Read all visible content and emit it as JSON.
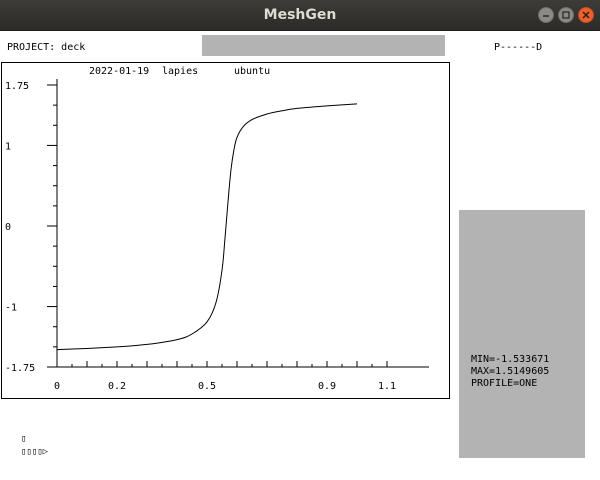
{
  "window": {
    "title": "MeshGen"
  },
  "header": {
    "project_label": "PROJECT: deck",
    "status_right": "P------D",
    "progress_fraction": 1.0
  },
  "plot": {
    "caption_date": "2022-01-19",
    "caption_user": "lapies",
    "caption_host": "ubuntu"
  },
  "chart_data": {
    "type": "line",
    "title": "",
    "xlabel": "",
    "ylabel": "",
    "xlim": [
      0,
      1.15
    ],
    "ylim": [
      -1.75,
      1.75
    ],
    "x_ticks": [
      0,
      0.2,
      0.5,
      0.9,
      1.1
    ],
    "x_tick_labels": [
      "0",
      "0.2",
      "0.5",
      "0.9",
      "1.1"
    ],
    "y_ticks": [
      1.75,
      1,
      0,
      -1,
      -1.75
    ],
    "y_tick_labels": [
      "1.75",
      "1",
      "0",
      "-1",
      "-1.75"
    ],
    "series": [
      {
        "x": [
          0,
          0.1,
          0.2,
          0.3,
          0.4,
          0.45,
          0.5,
          0.53,
          0.55,
          0.56,
          0.57,
          0.58,
          0.59,
          0.6,
          0.62,
          0.65,
          0.7,
          0.75,
          0.8,
          0.9,
          1.0
        ],
        "values": [
          -1.534,
          -1.52,
          -1.5,
          -1.47,
          -1.41,
          -1.34,
          -1.19,
          -0.95,
          -0.55,
          -0.15,
          0.3,
          0.7,
          0.95,
          1.1,
          1.23,
          1.32,
          1.39,
          1.43,
          1.46,
          1.49,
          1.515
        ]
      }
    ],
    "grid": false,
    "legend": "none"
  },
  "stats": {
    "min_label": "MIN=-1.533671",
    "max_label": "MAX=1.5149605",
    "profile_label": "PROFILE=ONE"
  },
  "console": {
    "cursor": "▯",
    "prompt": "▯▯▯▯▷"
  }
}
